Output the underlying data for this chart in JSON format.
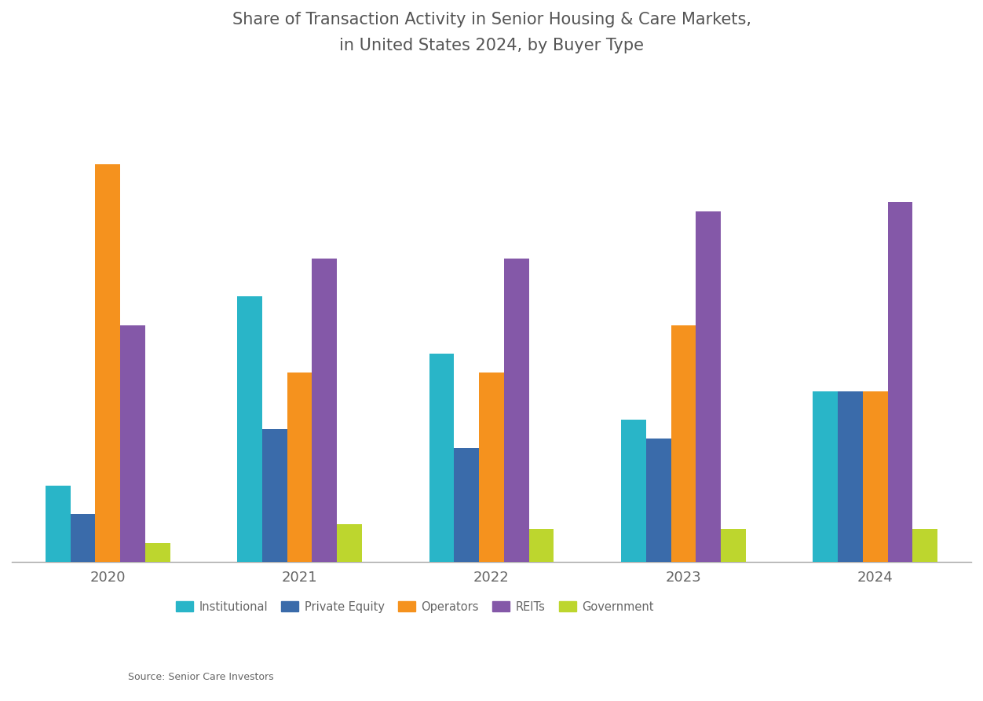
{
  "title_line1": "Share of Transaction Activity in Senior Housing & Care Markets,",
  "title_line2": "in United States 2024, by Buyer Type",
  "years": [
    "2020",
    "2021",
    "2022",
    "2023",
    "2024"
  ],
  "legend_labels": [
    "Institutional",
    "Private Equity",
    "Operators",
    "REITs",
    "Government"
  ],
  "colors": [
    "#29B5C8",
    "#3A6BAA",
    "#F5921E",
    "#8458A8",
    "#BDD62E"
  ],
  "data": {
    "2020": [
      8.0,
      5.0,
      42.0,
      25.0,
      2.0
    ],
    "2021": [
      28.0,
      14.0,
      20.0,
      32.0,
      4.0
    ],
    "2022": [
      22.0,
      12.0,
      20.0,
      32.0,
      3.5
    ],
    "2023": [
      15.0,
      13.0,
      25.0,
      37.0,
      3.5
    ],
    "2024": [
      18.0,
      18.0,
      18.0,
      38.0,
      3.5
    ]
  },
  "ylim": [
    0,
    50
  ],
  "background_color": "#FFFFFF",
  "plot_bg": "#FFFFFF",
  "bar_width": 0.13,
  "title_color": "#555555",
  "axis_color": "#AAAAAA",
  "legend_text_color": "#666666",
  "tick_color": "#666666",
  "source_text": "Source: Senior Care Investors"
}
